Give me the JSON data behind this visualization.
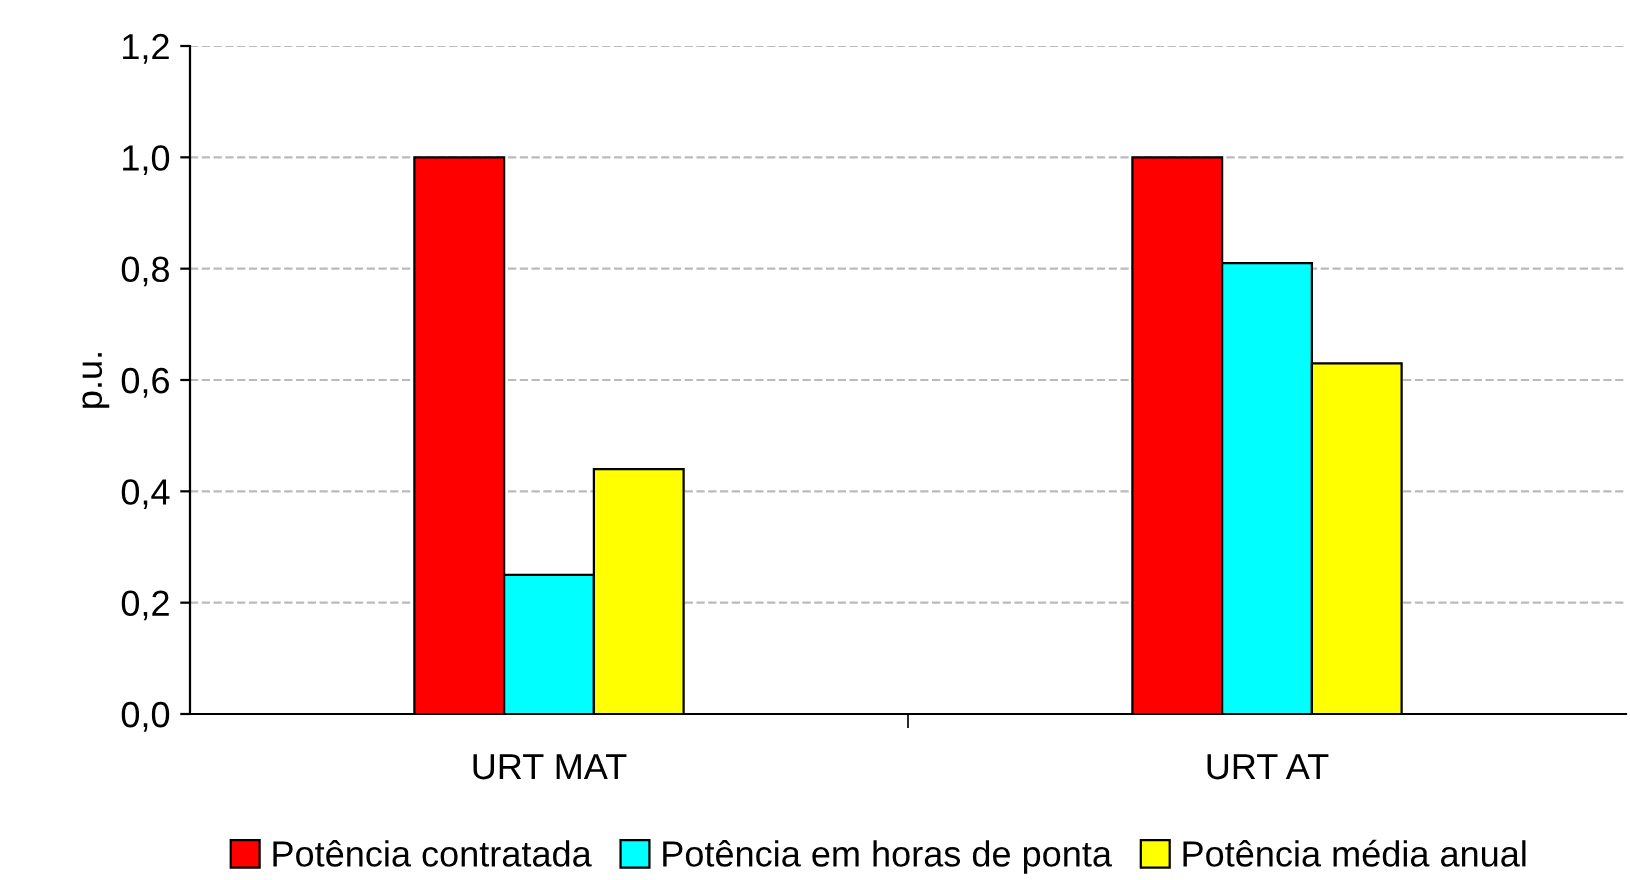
{
  "chart_data": {
    "type": "bar",
    "ylabel": "p.u.",
    "categories": [
      "URT MAT",
      "URT AT"
    ],
    "series": [
      {
        "name": "Potência contratada",
        "color": "#ff0000",
        "values": [
          1.0,
          1.0
        ]
      },
      {
        "name": "Potência em horas de ponta",
        "color": "#00ffff",
        "values": [
          0.25,
          0.81
        ]
      },
      {
        "name": "Potência média anual",
        "color": "#ffff00",
        "values": [
          0.44,
          0.63
        ]
      }
    ],
    "ylim": [
      0,
      1.2
    ],
    "yticks": [
      {
        "value": 0,
        "label": "0,0"
      },
      {
        "value": 0.2,
        "label": "0,2"
      },
      {
        "value": 0.4,
        "label": "0,4"
      },
      {
        "value": 0.6,
        "label": "0,6"
      },
      {
        "value": 0.8,
        "label": "0,8"
      },
      {
        "value": 1.0,
        "label": "1,0"
      },
      {
        "value": 1.2,
        "label": "1,2"
      }
    ],
    "grid": "y",
    "legend": "bottom"
  }
}
